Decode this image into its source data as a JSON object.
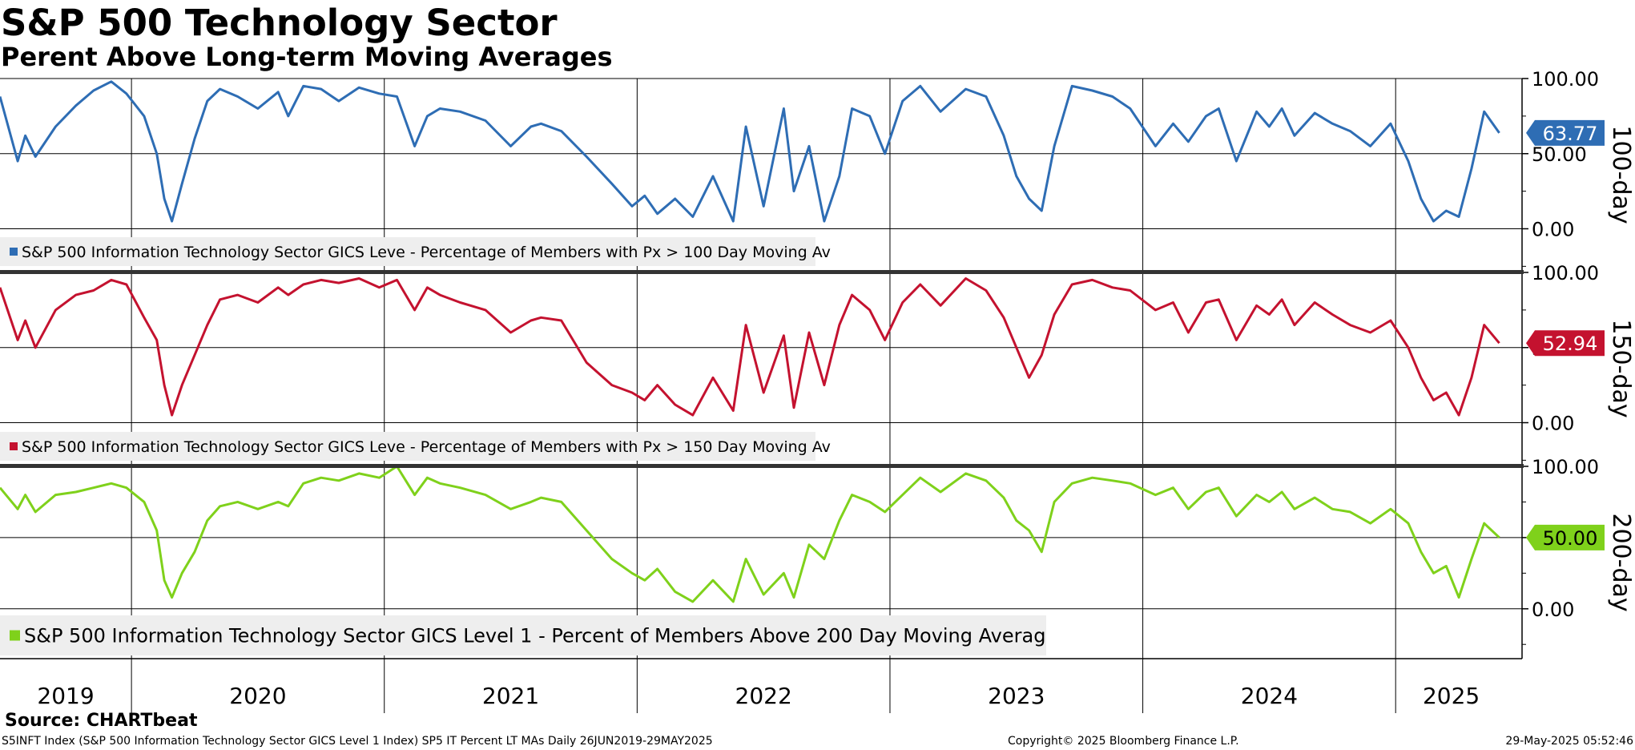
{
  "title": "S&P 500 Technology Sector",
  "subtitle": "Perent Above Long-term Moving Averages",
  "source": "Source: CHARTbeat",
  "footer": {
    "left": "S5INFT Index (S&P 500 Information Technology Sector GICS Level 1 Index) SP5 IT Percent LT MAs  Daily 26JUN2019-29MAY2025",
    "center": "Copyright© 2025 Bloomberg Finance L.P.",
    "right": "29-May-2025 05:52:46"
  },
  "colors": {
    "p100": "#2e6db4",
    "p150": "#c4122f",
    "p200": "#7fd11b",
    "grid": "#000000",
    "legend_bg": "#eeeeee"
  },
  "chart_data": [
    {
      "type": "line",
      "panel_label": "100-day",
      "legend": "S&P 500 Information Technology Sector GICS Leve - Percentage of Members with Px > 100 Day Moving Av",
      "last_value_label": "63.77",
      "last_value": 63.77,
      "ylim": [
        -28,
        100
      ],
      "yticks": [
        0,
        50,
        100
      ],
      "ytick_labels": [
        "0.00",
        "50.00",
        "100.00"
      ],
      "x": [
        2019.48,
        2019.55,
        2019.58,
        2019.62,
        2019.7,
        2019.78,
        2019.85,
        2019.92,
        2019.98,
        2020.05,
        2020.1,
        2020.13,
        2020.16,
        2020.2,
        2020.25,
        2020.3,
        2020.35,
        2020.42,
        2020.5,
        2020.58,
        2020.62,
        2020.68,
        2020.75,
        2020.82,
        2020.9,
        2020.98,
        2021.05,
        2021.12,
        2021.17,
        2021.22,
        2021.3,
        2021.4,
        2021.5,
        2021.58,
        2021.62,
        2021.7,
        2021.8,
        2021.9,
        2021.98,
        2022.03,
        2022.08,
        2022.15,
        2022.22,
        2022.3,
        2022.38,
        2022.43,
        2022.5,
        2022.58,
        2022.62,
        2022.68,
        2022.74,
        2022.8,
        2022.85,
        2022.92,
        2022.98,
        2023.05,
        2023.12,
        2023.2,
        2023.3,
        2023.38,
        2023.45,
        2023.5,
        2023.55,
        2023.6,
        2023.65,
        2023.72,
        2023.8,
        2023.88,
        2023.95,
        2024.05,
        2024.12,
        2024.18,
        2024.25,
        2024.3,
        2024.37,
        2024.45,
        2024.5,
        2024.55,
        2024.6,
        2024.68,
        2024.75,
        2024.82,
        2024.9,
        2024.98,
        2025.05,
        2025.1,
        2025.15,
        2025.2,
        2025.25,
        2025.3,
        2025.35,
        2025.41
      ],
      "y": [
        88,
        45,
        62,
        48,
        68,
        82,
        92,
        98,
        90,
        75,
        50,
        20,
        5,
        30,
        60,
        85,
        93,
        88,
        80,
        91,
        75,
        95,
        93,
        85,
        94,
        90,
        88,
        55,
        75,
        80,
        78,
        72,
        55,
        68,
        70,
        65,
        48,
        30,
        15,
        22,
        10,
        20,
        8,
        35,
        5,
        68,
        15,
        80,
        25,
        55,
        5,
        35,
        80,
        75,
        50,
        85,
        95,
        78,
        93,
        88,
        62,
        35,
        20,
        12,
        55,
        95,
        92,
        88,
        80,
        55,
        70,
        58,
        75,
        80,
        45,
        78,
        68,
        80,
        62,
        77,
        70,
        65,
        55,
        70,
        45,
        20,
        5,
        12,
        8,
        40,
        78,
        63.77
      ]
    },
    {
      "type": "line",
      "panel_label": "150-day",
      "legend": "S&P 500 Information Technology Sector GICS Leve - Percentage of Members with Px > 150 Day Moving Av",
      "last_value_label": "52.94",
      "last_value": 52.94,
      "ylim": [
        -28,
        100
      ],
      "yticks": [
        0,
        50,
        100
      ],
      "ytick_labels": [
        "0.00",
        "50.00",
        "100.00"
      ],
      "x": [
        2019.48,
        2019.55,
        2019.58,
        2019.62,
        2019.7,
        2019.78,
        2019.85,
        2019.92,
        2019.98,
        2020.05,
        2020.1,
        2020.13,
        2020.16,
        2020.2,
        2020.25,
        2020.3,
        2020.35,
        2020.42,
        2020.5,
        2020.58,
        2020.62,
        2020.68,
        2020.75,
        2020.82,
        2020.9,
        2020.98,
        2021.05,
        2021.12,
        2021.17,
        2021.22,
        2021.3,
        2021.4,
        2021.5,
        2021.58,
        2021.62,
        2021.7,
        2021.8,
        2021.9,
        2021.98,
        2022.03,
        2022.08,
        2022.15,
        2022.22,
        2022.3,
        2022.38,
        2022.43,
        2022.5,
        2022.58,
        2022.62,
        2022.68,
        2022.74,
        2022.8,
        2022.85,
        2022.92,
        2022.98,
        2023.05,
        2023.12,
        2023.2,
        2023.3,
        2023.38,
        2023.45,
        2023.5,
        2023.55,
        2023.6,
        2023.65,
        2023.72,
        2023.8,
        2023.88,
        2023.95,
        2024.05,
        2024.12,
        2024.18,
        2024.25,
        2024.3,
        2024.37,
        2024.45,
        2024.5,
        2024.55,
        2024.6,
        2024.68,
        2024.75,
        2024.82,
        2024.9,
        2024.98,
        2025.05,
        2025.1,
        2025.15,
        2025.2,
        2025.25,
        2025.3,
        2025.35,
        2025.41
      ],
      "y": [
        90,
        55,
        68,
        50,
        75,
        85,
        88,
        95,
        92,
        70,
        55,
        25,
        5,
        25,
        45,
        65,
        82,
        85,
        80,
        90,
        85,
        92,
        95,
        93,
        96,
        90,
        95,
        75,
        90,
        85,
        80,
        75,
        60,
        68,
        70,
        68,
        40,
        25,
        20,
        15,
        25,
        12,
        5,
        30,
        8,
        65,
        20,
        58,
        10,
        60,
        25,
        65,
        85,
        75,
        55,
        80,
        92,
        78,
        96,
        88,
        70,
        50,
        30,
        45,
        72,
        92,
        95,
        90,
        88,
        75,
        80,
        60,
        80,
        82,
        55,
        78,
        72,
        82,
        65,
        80,
        72,
        65,
        60,
        68,
        50,
        30,
        15,
        20,
        5,
        30,
        65,
        52.94
      ]
    },
    {
      "type": "line",
      "panel_label": "200-day",
      "legend": "S&P 500 Information Technology Sector GICS Level 1 - Percent of Members Above 200 Day Moving Averag",
      "last_value_label": "50.00",
      "last_value": 50.0,
      "ylim": [
        -35,
        100
      ],
      "yticks": [
        0,
        50,
        100
      ],
      "ytick_labels": [
        "0.00",
        "50.00",
        "100.00"
      ],
      "x": [
        2019.48,
        2019.55,
        2019.58,
        2019.62,
        2019.7,
        2019.78,
        2019.85,
        2019.92,
        2019.98,
        2020.05,
        2020.1,
        2020.13,
        2020.16,
        2020.2,
        2020.25,
        2020.3,
        2020.35,
        2020.42,
        2020.5,
        2020.58,
        2020.62,
        2020.68,
        2020.75,
        2020.82,
        2020.9,
        2020.98,
        2021.05,
        2021.12,
        2021.17,
        2021.22,
        2021.3,
        2021.4,
        2021.5,
        2021.58,
        2021.62,
        2021.7,
        2021.8,
        2021.9,
        2021.98,
        2022.03,
        2022.08,
        2022.15,
        2022.22,
        2022.3,
        2022.38,
        2022.43,
        2022.5,
        2022.58,
        2022.62,
        2022.68,
        2022.74,
        2022.8,
        2022.85,
        2022.92,
        2022.98,
        2023.05,
        2023.12,
        2023.2,
        2023.3,
        2023.38,
        2023.45,
        2023.5,
        2023.55,
        2023.6,
        2023.65,
        2023.72,
        2023.8,
        2023.88,
        2023.95,
        2024.05,
        2024.12,
        2024.18,
        2024.25,
        2024.3,
        2024.37,
        2024.45,
        2024.5,
        2024.55,
        2024.6,
        2024.68,
        2024.75,
        2024.82,
        2024.9,
        2024.98,
        2025.05,
        2025.1,
        2025.15,
        2025.2,
        2025.25,
        2025.3,
        2025.35,
        2025.41
      ],
      "y": [
        85,
        70,
        80,
        68,
        80,
        82,
        85,
        88,
        85,
        75,
        55,
        20,
        8,
        25,
        40,
        62,
        72,
        75,
        70,
        75,
        72,
        88,
        92,
        90,
        95,
        92,
        100,
        80,
        92,
        88,
        85,
        80,
        70,
        75,
        78,
        75,
        55,
        35,
        25,
        20,
        28,
        12,
        5,
        20,
        5,
        35,
        10,
        25,
        8,
        45,
        35,
        62,
        80,
        75,
        68,
        80,
        92,
        82,
        95,
        90,
        78,
        62,
        55,
        40,
        75,
        88,
        92,
        90,
        88,
        80,
        85,
        70,
        82,
        85,
        65,
        80,
        75,
        82,
        70,
        78,
        70,
        68,
        60,
        70,
        60,
        40,
        25,
        30,
        8,
        35,
        60,
        50.0
      ]
    }
  ],
  "x_axis": {
    "years": [
      "2019",
      "2020",
      "2021",
      "2022",
      "2023",
      "2024",
      "2025"
    ],
    "label_positions": [
      2019.74,
      2020.5,
      2021.5,
      2022.5,
      2023.5,
      2024.5,
      2025.22
    ],
    "year_boundaries": [
      2020.0,
      2021.0,
      2022.0,
      2023.0,
      2024.0,
      2025.0
    ],
    "range": [
      2019.48,
      2025.5
    ]
  }
}
